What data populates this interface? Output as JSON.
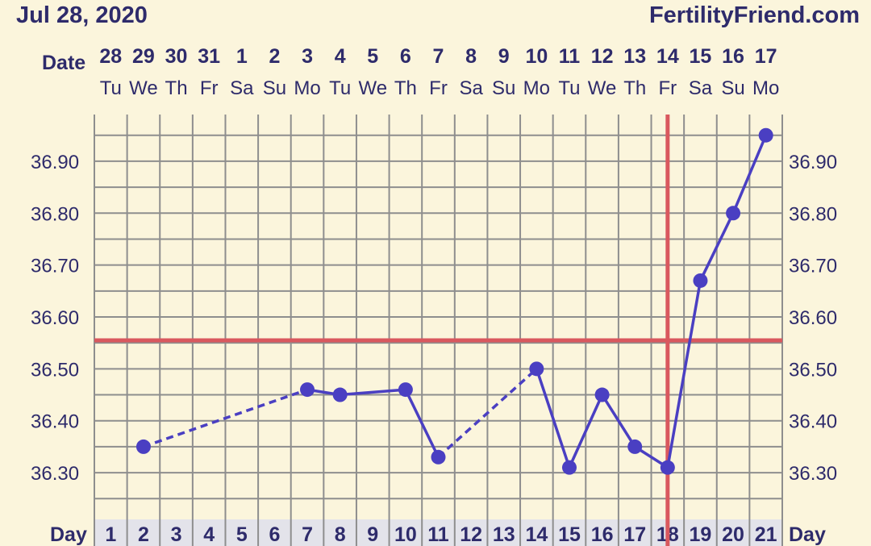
{
  "header": {
    "date_label": "Jul 28, 2020",
    "brand": "FertilityFriend.com",
    "row_date_label": "Date",
    "row_day_label": "Day"
  },
  "colors": {
    "background": "#fbf5dc",
    "grid": "#8e8e8e",
    "series": "#4a3fc2",
    "coverline": "#d9585e",
    "text": "#2e2b6b",
    "day_row": "#e3e3ea"
  },
  "chart_data": {
    "type": "line",
    "dates": [
      "28",
      "29",
      "30",
      "31",
      "1",
      "2",
      "3",
      "4",
      "5",
      "6",
      "7",
      "8",
      "9",
      "10",
      "11",
      "12",
      "13",
      "14",
      "15",
      "16",
      "17"
    ],
    "weekdays": [
      "Tu",
      "We",
      "Th",
      "Fr",
      "Sa",
      "Su",
      "Mo",
      "Tu",
      "We",
      "Th",
      "Fr",
      "Sa",
      "Su",
      "Mo",
      "Tu",
      "We",
      "Th",
      "Fr",
      "Sa",
      "Su",
      "Mo"
    ],
    "days": [
      1,
      2,
      3,
      4,
      5,
      6,
      7,
      8,
      9,
      10,
      11,
      12,
      13,
      14,
      15,
      16,
      17,
      18,
      19,
      20,
      21
    ],
    "yticks": [
      "36.30",
      "36.40",
      "36.50",
      "36.60",
      "36.70",
      "36.80",
      "36.90"
    ],
    "ylim": [
      36.21,
      36.99
    ],
    "points": [
      {
        "day": 2,
        "temp": 36.35
      },
      {
        "day": 7,
        "temp": 36.46
      },
      {
        "day": 8,
        "temp": 36.45
      },
      {
        "day": 10,
        "temp": 36.46
      },
      {
        "day": 11,
        "temp": 36.33
      },
      {
        "day": 14,
        "temp": 36.5
      },
      {
        "day": 15,
        "temp": 36.31
      },
      {
        "day": 16,
        "temp": 36.45
      },
      {
        "day": 17,
        "temp": 36.35
      },
      {
        "day": 18,
        "temp": 36.31
      },
      {
        "day": 19,
        "temp": 36.67
      },
      {
        "day": 20,
        "temp": 36.8
      },
      {
        "day": 21,
        "temp": 36.95
      }
    ],
    "dashed_segments": [
      [
        2,
        7
      ],
      [
        11,
        14
      ]
    ],
    "coverline_temp": 36.555,
    "ovulation_day": 18,
    "grid": true
  }
}
